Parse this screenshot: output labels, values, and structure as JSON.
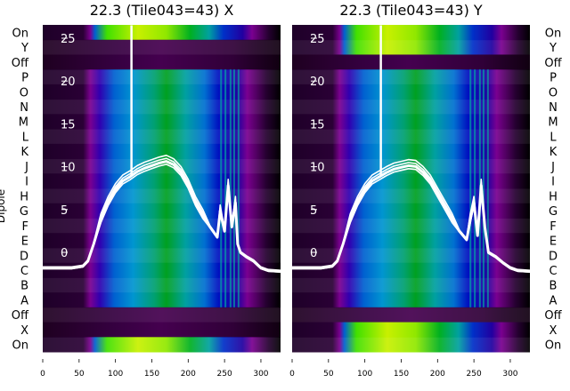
{
  "chart_data": [
    {
      "type": "heatmap",
      "title": "22.3 (Tile043=43) X",
      "ylabel": "Dipole",
      "row_labels": [
        "On",
        "Y",
        "Off",
        "P",
        "O",
        "N",
        "M",
        "L",
        "K",
        "J",
        "I",
        "H",
        "G",
        "F",
        "E",
        "D",
        "C",
        "B",
        "A",
        "Off",
        "X",
        "On"
      ],
      "x_ticks": [
        "0",
        "50",
        "100",
        "150",
        "200",
        "250",
        "300"
      ],
      "xlim": [
        0,
        327
      ],
      "overlay_y_ticks": [
        "0",
        "5",
        "10",
        "15",
        "20",
        "25"
      ],
      "overlay_ylim": [
        -2.5,
        26.5
      ],
      "overlay_series": {
        "x": [
          0,
          40,
          55,
          62,
          70,
          80,
          90,
          100,
          110,
          120,
          130,
          140,
          150,
          160,
          170,
          180,
          190,
          200,
          210,
          220,
          230,
          240,
          244,
          250,
          255,
          260,
          265,
          268,
          272,
          280,
          290,
          300,
          310,
          327
        ],
        "y": [
          -1.8,
          -1.8,
          -1.6,
          -1,
          1,
          4,
          6,
          7.5,
          8.5,
          9,
          9.6,
          10,
          10.3,
          10.6,
          10.8,
          10.4,
          9.5,
          8,
          6,
          4.5,
          3,
          1.8,
          5,
          2.5,
          8,
          3,
          6,
          1,
          0,
          -0.5,
          -1,
          -1.8,
          -2.1,
          -2.2
        ]
      },
      "spike": {
        "x": 122,
        "y": 26.5
      }
    },
    {
      "type": "heatmap",
      "title": "22.3 (Tile043=43) Y",
      "row_labels": [
        "On",
        "Y",
        "Off",
        "P",
        "O",
        "N",
        "M",
        "L",
        "K",
        "J",
        "I",
        "H",
        "G",
        "F",
        "E",
        "D",
        "C",
        "B",
        "A",
        "Off",
        "X",
        "On"
      ],
      "x_ticks": [
        "0",
        "50",
        "100",
        "150",
        "200",
        "250",
        "300"
      ],
      "xlim": [
        0,
        327
      ],
      "overlay_y_ticks": [
        "0",
        "5",
        "10",
        "15",
        "20",
        "25"
      ],
      "overlay_ylim": [
        -2.5,
        26.5
      ],
      "overlay_series": {
        "x": [
          0,
          40,
          55,
          62,
          70,
          80,
          90,
          100,
          110,
          120,
          130,
          140,
          150,
          160,
          170,
          180,
          190,
          200,
          210,
          220,
          230,
          240,
          245,
          250,
          255,
          260,
          265,
          270,
          280,
          290,
          300,
          310,
          327
        ],
        "y": [
          -1.8,
          -1.8,
          -1.6,
          -1,
          1,
          4,
          6,
          7.5,
          8.5,
          9,
          9.5,
          9.9,
          10.1,
          10.3,
          10.2,
          9.5,
          8.5,
          7,
          5.5,
          4,
          2.5,
          1.5,
          4,
          6,
          2,
          8,
          3,
          0,
          -0.5,
          -1.2,
          -1.8,
          -2.1,
          -2.2
        ]
      },
      "spike": {
        "x": 122,
        "y": 26.5
      }
    }
  ]
}
